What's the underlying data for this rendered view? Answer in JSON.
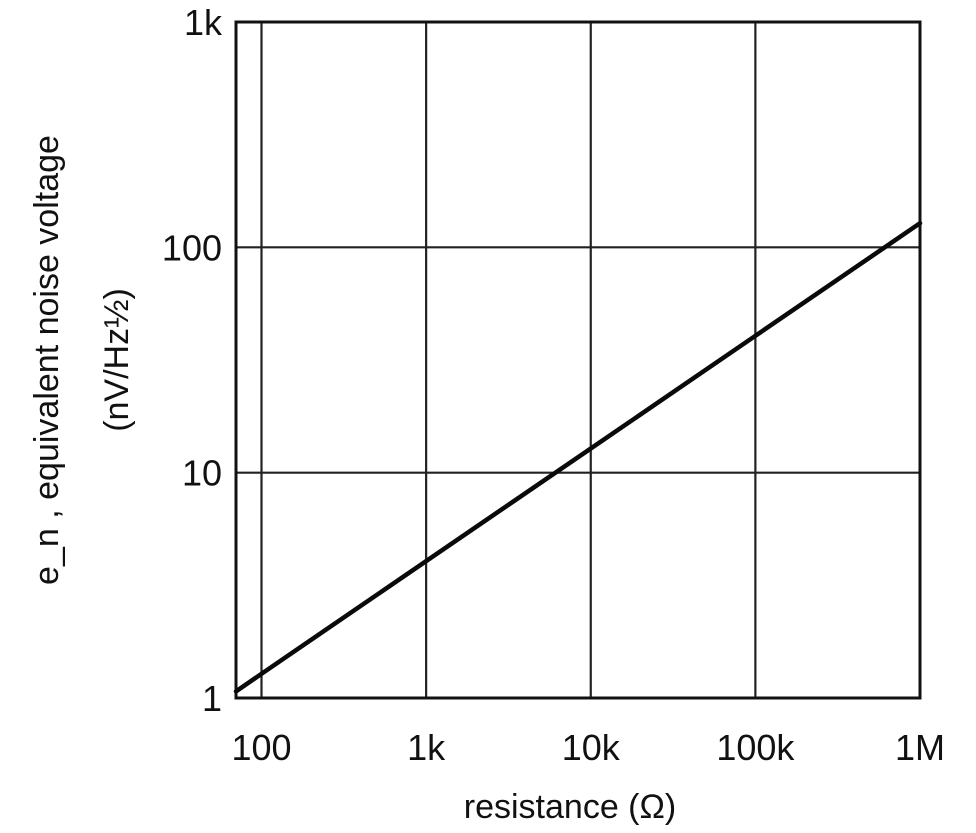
{
  "chart_data": {
    "type": "line",
    "xlabel": "resistance (Ω)",
    "ylabel": "e_n , equivalent noise voltage",
    "ylabel_units": "(nV/Hz½)",
    "x_scale": "log",
    "y_scale": "log",
    "xlim": [
      70,
      1000000
    ],
    "ylim": [
      1,
      1000
    ],
    "x_ticks": [
      {
        "value": 100,
        "label": "100"
      },
      {
        "value": 1000,
        "label": "1k"
      },
      {
        "value": 10000,
        "label": "10k"
      },
      {
        "value": 100000,
        "label": "100k"
      },
      {
        "value": 1000000,
        "label": "1M"
      }
    ],
    "y_ticks": [
      {
        "value": 1,
        "label": "1"
      },
      {
        "value": 10,
        "label": "10"
      },
      {
        "value": 100,
        "label": "100"
      },
      {
        "value": 1000,
        "label": "1k"
      }
    ],
    "grid": true,
    "series": [
      {
        "color": "#0a0a0a",
        "points": [
          {
            "x": 70,
            "y": 1.07
          },
          {
            "x": 100,
            "y": 1.28
          },
          {
            "x": 1000,
            "y": 4.05
          },
          {
            "x": 10000,
            "y": 12.8
          },
          {
            "x": 100000,
            "y": 40.5
          },
          {
            "x": 1000000,
            "y": 128
          }
        ]
      }
    ]
  }
}
